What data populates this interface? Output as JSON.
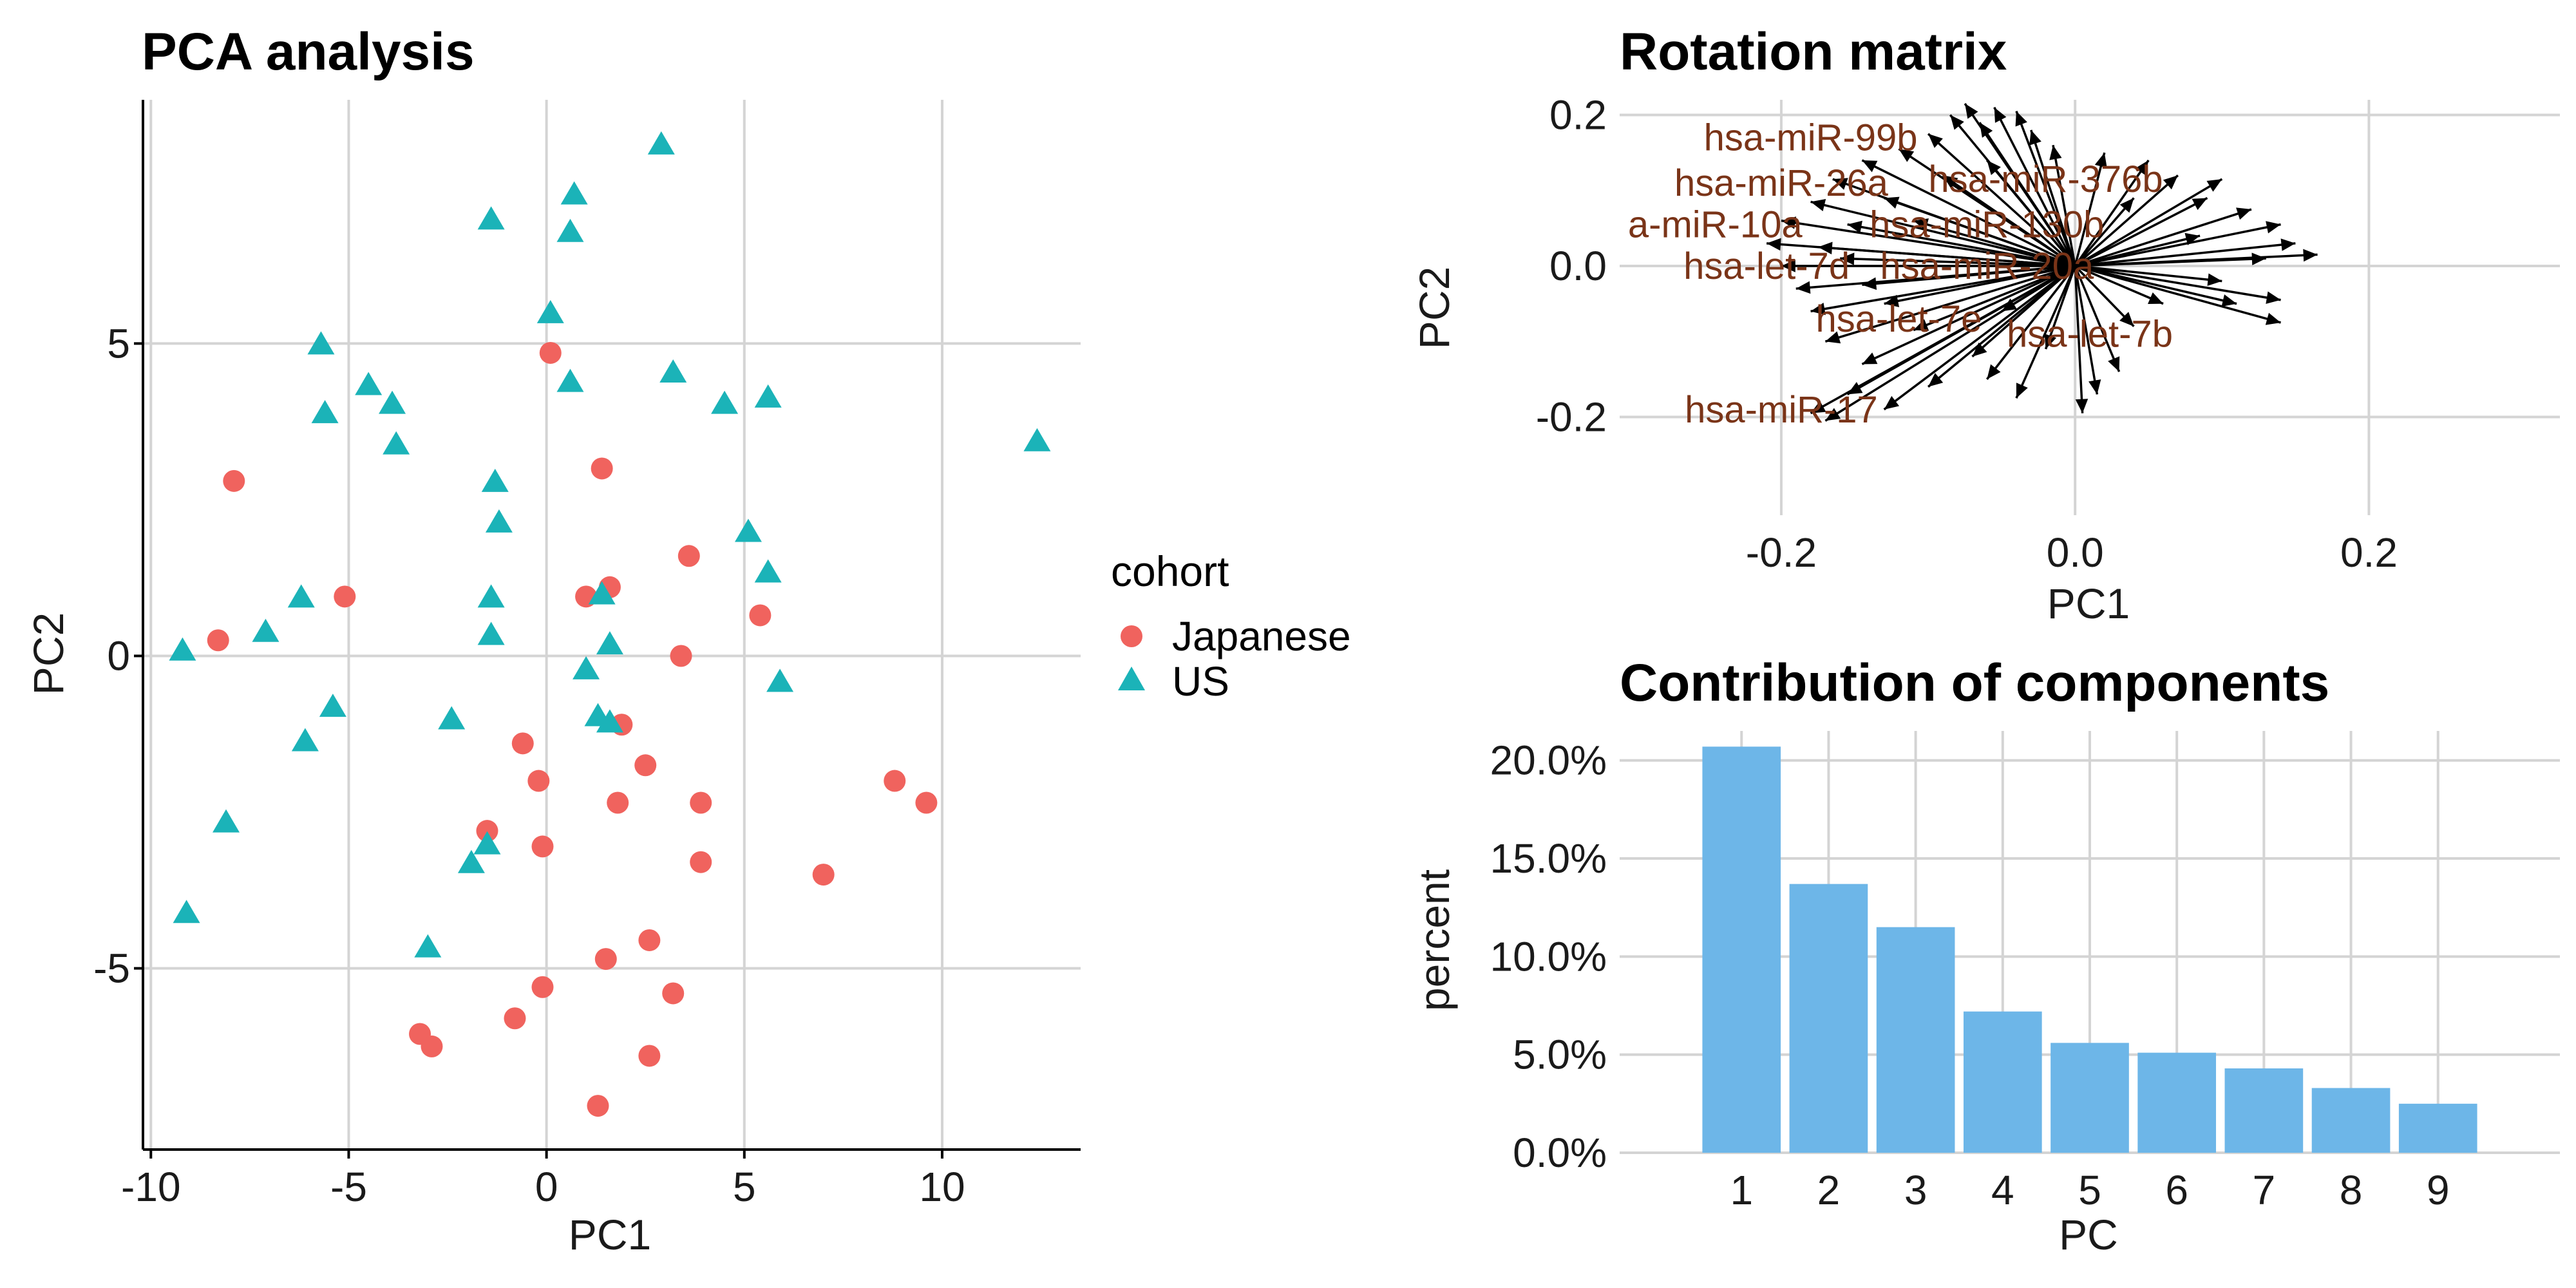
{
  "chart_data": [
    {
      "id": "pca",
      "type": "scatter",
      "title": "PCA analysis",
      "xlabel": "PC1",
      "ylabel": "PC2",
      "xlim": [
        -10.2,
        13.5
      ],
      "ylim": [
        -7.9,
        8.9
      ],
      "xticks": [
        -10,
        -5,
        0,
        5,
        10
      ],
      "yticks": [
        -5,
        0,
        5
      ],
      "grid": true,
      "legend": {
        "title": "cohort",
        "placement": "right",
        "entries": [
          {
            "label": "Japanese",
            "shape": "circle",
            "color": "#F0635E"
          },
          {
            "label": "US",
            "shape": "triangle",
            "color": "#1BB3B8"
          }
        ]
      },
      "series": [
        {
          "name": "Japanese",
          "color": "#F0635E",
          "shape": "circle",
          "points": [
            [
              -7.9,
              2.8
            ],
            [
              -8.3,
              0.25
            ],
            [
              -5.1,
              0.95
            ],
            [
              0.1,
              4.85
            ],
            [
              1.4,
              3.0
            ],
            [
              1.0,
              0.95
            ],
            [
              1.6,
              1.1
            ],
            [
              3.6,
              1.6
            ],
            [
              5.4,
              0.65
            ],
            [
              3.4,
              0.0
            ],
            [
              1.9,
              -1.1
            ],
            [
              -0.6,
              -1.4
            ],
            [
              -0.2,
              -2.0
            ],
            [
              2.5,
              -1.75
            ],
            [
              1.8,
              -2.35
            ],
            [
              3.9,
              -2.35
            ],
            [
              8.8,
              -2.0
            ],
            [
              9.6,
              -2.35
            ],
            [
              -1.5,
              -2.8
            ],
            [
              -0.1,
              -3.05
            ],
            [
              3.9,
              -3.3
            ],
            [
              7.0,
              -3.5
            ],
            [
              2.6,
              -4.55
            ],
            [
              1.5,
              -4.85
            ],
            [
              -0.1,
              -5.3
            ],
            [
              3.2,
              -5.4
            ],
            [
              -0.8,
              -5.8
            ],
            [
              -3.2,
              -6.05
            ],
            [
              -2.9,
              -6.25
            ],
            [
              2.6,
              -6.4
            ],
            [
              1.3,
              -7.2
            ]
          ]
        },
        {
          "name": "US",
          "color": "#1BB3B8",
          "shape": "triangle",
          "points": [
            [
              2.9,
              8.2
            ],
            [
              0.7,
              7.4
            ],
            [
              -1.4,
              7.0
            ],
            [
              0.6,
              6.8
            ],
            [
              0.1,
              5.5
            ],
            [
              -5.7,
              5.0
            ],
            [
              -4.5,
              4.35
            ],
            [
              -5.6,
              3.9
            ],
            [
              -3.9,
              4.05
            ],
            [
              0.6,
              4.4
            ],
            [
              3.2,
              4.55
            ],
            [
              4.5,
              4.05
            ],
            [
              5.6,
              4.15
            ],
            [
              12.4,
              3.45
            ],
            [
              -3.8,
              3.4
            ],
            [
              -1.3,
              2.8
            ],
            [
              -1.2,
              2.15
            ],
            [
              5.1,
              2.0
            ],
            [
              5.6,
              1.35
            ],
            [
              -6.2,
              0.95
            ],
            [
              -1.4,
              0.95
            ],
            [
              1.4,
              1.0
            ],
            [
              -7.1,
              0.4
            ],
            [
              -1.4,
              0.35
            ],
            [
              1.6,
              0.2
            ],
            [
              -9.2,
              0.1
            ],
            [
              1.0,
              -0.2
            ],
            [
              5.9,
              -0.4
            ],
            [
              -5.4,
              -0.8
            ],
            [
              -2.4,
              -1.0
            ],
            [
              1.3,
              -0.95
            ],
            [
              1.6,
              -1.05
            ],
            [
              -6.1,
              -1.35
            ],
            [
              -8.1,
              -2.65
            ],
            [
              -1.5,
              -3.0
            ],
            [
              -1.9,
              -3.3
            ],
            [
              -3.0,
              -4.65
            ],
            [
              -9.1,
              -4.1
            ]
          ]
        }
      ]
    },
    {
      "id": "rotation",
      "type": "biplot-arrows",
      "title": "Rotation matrix",
      "xlabel": "PC1",
      "ylabel": "PC2",
      "xlim": [
        -0.31,
        0.33
      ],
      "ylim": [
        -0.33,
        0.22
      ],
      "xticks": [
        -0.2,
        0.0,
        0.2
      ],
      "yticks": [
        -0.2,
        0.0,
        0.2
      ],
      "xtick_labels": [
        "-0.2",
        "0.0",
        "0.2"
      ],
      "ytick_labels": [
        "-0.2",
        "0.0",
        "0.2"
      ],
      "grid": true,
      "labels": [
        {
          "text": "hsa-miR-99b",
          "x": -0.18,
          "y": 0.17
        },
        {
          "text": "hsa-miR-26a",
          "x": -0.2,
          "y": 0.11
        },
        {
          "text": "hsa-miR-376b",
          "x": -0.02,
          "y": 0.115
        },
        {
          "text": "a-miR-10a",
          "x": -0.245,
          "y": 0.055
        },
        {
          "text": "hsa-miR-130b",
          "x": -0.06,
          "y": 0.055
        },
        {
          "text": "hsa-let-7d",
          "x": -0.21,
          "y": 0.0
        },
        {
          "text": "hsa-miR-20a",
          "x": -0.06,
          "y": 0.0
        },
        {
          "text": "hsa-let-7e",
          "x": -0.12,
          "y": -0.07
        },
        {
          "text": "hsa-let-7b",
          "x": 0.01,
          "y": -0.09
        },
        {
          "text": "hsa-miR-17",
          "x": -0.2,
          "y": -0.19
        }
      ],
      "arrows": [
        [
          -0.075,
          0.215
        ],
        [
          -0.055,
          0.21
        ],
        [
          -0.085,
          0.2
        ],
        [
          -0.04,
          0.205
        ],
        [
          -0.065,
          0.19
        ],
        [
          -0.1,
          0.175
        ],
        [
          -0.03,
          0.18
        ],
        [
          -0.12,
          0.155
        ],
        [
          -0.015,
          0.16
        ],
        [
          -0.145,
          0.14
        ],
        [
          0.02,
          0.15
        ],
        [
          0.05,
          0.14
        ],
        [
          -0.165,
          0.115
        ],
        [
          -0.09,
          0.12
        ],
        [
          0.07,
          0.12
        ],
        [
          0.1,
          0.115
        ],
        [
          -0.18,
          0.085
        ],
        [
          -0.13,
          0.09
        ],
        [
          0.09,
          0.09
        ],
        [
          -0.2,
          0.06
        ],
        [
          -0.155,
          0.055
        ],
        [
          -0.11,
          0.06
        ],
        [
          0.12,
          0.075
        ],
        [
          0.14,
          0.055
        ],
        [
          -0.21,
          0.03
        ],
        [
          -0.175,
          0.025
        ],
        [
          0.085,
          0.04
        ],
        [
          0.15,
          0.03
        ],
        [
          -0.2,
          0.0
        ],
        [
          -0.16,
          0.01
        ],
        [
          0.13,
          0.01
        ],
        [
          0.165,
          0.015
        ],
        [
          -0.19,
          -0.03
        ],
        [
          -0.145,
          -0.025
        ],
        [
          0.1,
          -0.02
        ],
        [
          0.14,
          -0.045
        ],
        [
          -0.18,
          -0.06
        ],
        [
          -0.13,
          -0.05
        ],
        [
          0.06,
          -0.05
        ],
        [
          0.14,
          -0.075
        ],
        [
          -0.17,
          -0.1
        ],
        [
          -0.11,
          -0.085
        ],
        [
          0.04,
          -0.08
        ],
        [
          -0.145,
          -0.13
        ],
        [
          -0.07,
          -0.12
        ],
        [
          0.03,
          -0.14
        ],
        [
          -0.155,
          -0.17
        ],
        [
          -0.1,
          -0.16
        ],
        [
          0.015,
          -0.17
        ],
        [
          -0.18,
          -0.195
        ],
        [
          -0.13,
          -0.19
        ],
        [
          -0.04,
          -0.175
        ],
        [
          0.005,
          -0.195
        ],
        [
          -0.17,
          -0.205
        ],
        [
          -0.06,
          -0.15
        ],
        [
          -0.02,
          -0.11
        ],
        [
          -0.05,
          -0.06
        ],
        [
          0.04,
          0.09
        ],
        [
          -0.06,
          0.14
        ],
        [
          0.11,
          -0.05
        ]
      ]
    },
    {
      "id": "contribution",
      "type": "bar",
      "title": "Contribution of components",
      "xlabel": "PC",
      "ylabel": "percent",
      "categories": [
        "1",
        "2",
        "3",
        "4",
        "5",
        "6",
        "7",
        "8",
        "9"
      ],
      "values": [
        20.7,
        13.7,
        11.5,
        7.2,
        5.6,
        5.1,
        4.3,
        3.3,
        2.5
      ],
      "ylim": [
        0,
        21.5
      ],
      "yticks": [
        0,
        5,
        10,
        15,
        20
      ],
      "ytick_labels": [
        "0.0%",
        "5.0%",
        "10.0%",
        "15.0%",
        "20.0%"
      ],
      "color": "#6DB6E8",
      "grid": true
    }
  ]
}
